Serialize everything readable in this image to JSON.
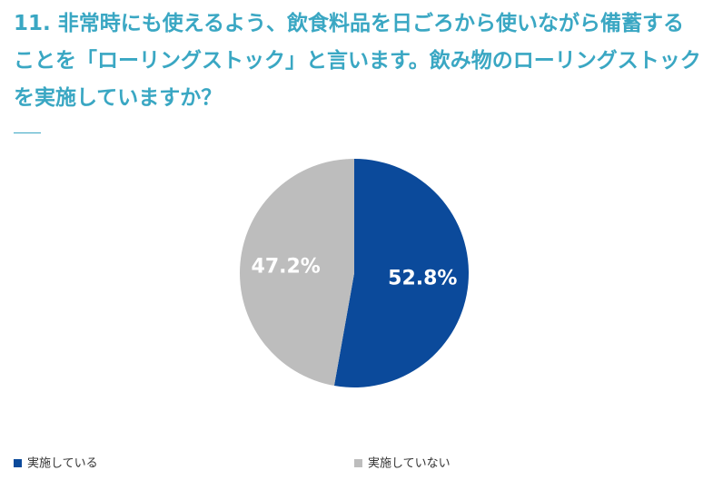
{
  "chart_data": {
    "type": "pie",
    "title": "11. 非常時にも使えるよう、飲食料品を日ごろから使いながら備蓄することを「ローリングストック」と言います。飲み物のローリングストックを実施していますか？",
    "categories": [
      "実施している",
      "実施していない"
    ],
    "values": [
      52.8,
      47.2
    ],
    "value_labels": [
      "52.8%",
      "47.2%"
    ],
    "colors": [
      "#0b4a9b",
      "#bdbdbd"
    ]
  }
}
